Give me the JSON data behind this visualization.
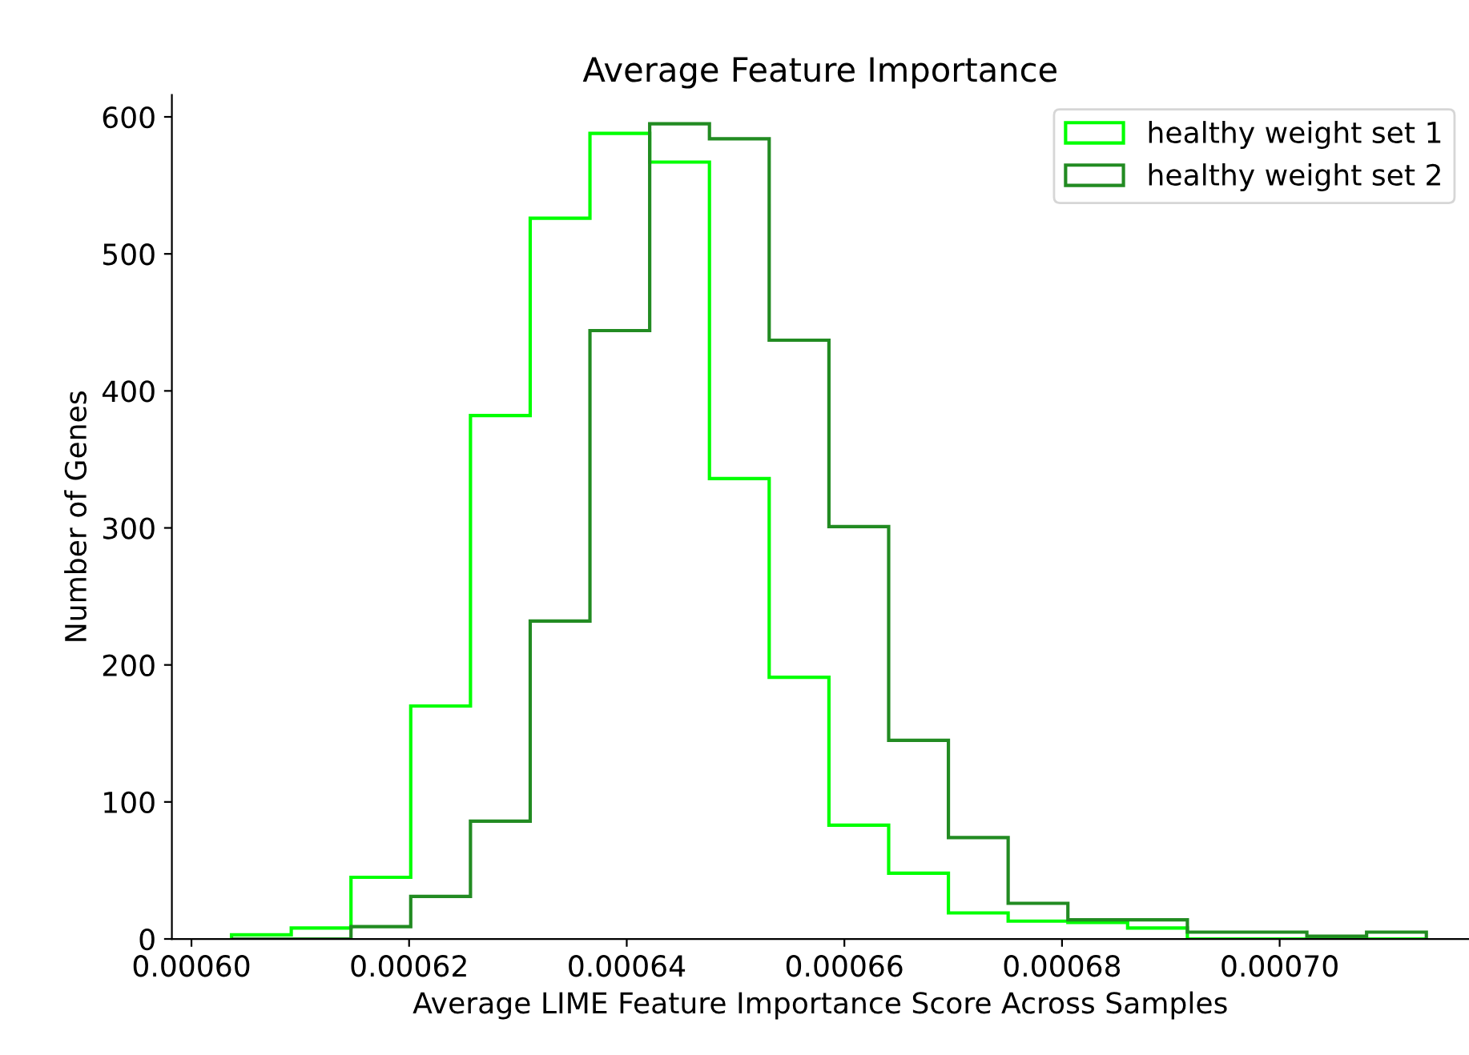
{
  "chart_data": {
    "type": "histogram",
    "title": "Average Feature Importance",
    "xlabel": "Average LIME Feature Importance Score Across Samples",
    "ylabel": "Number of Genes",
    "bins": [
      0.00060368,
      0.00060917,
      0.00061466,
      0.00062015,
      0.00062564,
      0.00063113,
      0.00063662,
      0.00064211,
      0.0006476,
      0.00065309,
      0.00065858,
      0.00066407,
      0.00066956,
      0.00067505,
      0.00068054,
      0.00068603,
      0.00069152,
      0.00069701,
      0.0007025,
      0.00070799,
      0.00071348
    ],
    "series": [
      {
        "name": "healthy weight set 1",
        "color": "#00ff00",
        "values": [
          3,
          8,
          45,
          170,
          382,
          526,
          588,
          567,
          336,
          191,
          83,
          48,
          19,
          13,
          12,
          8,
          0,
          0,
          0,
          0
        ]
      },
      {
        "name": "healthy weight set 2",
        "color": "#228b22",
        "values": [
          0,
          0,
          9,
          31,
          86,
          232,
          444,
          595,
          584,
          437,
          301,
          145,
          74,
          26,
          14,
          14,
          5,
          5,
          2,
          5
        ]
      }
    ],
    "xlim": [
      0.0005982,
      0.0007174
    ],
    "xticks": [
      {
        "value": 0.0006,
        "label": "0.00060"
      },
      {
        "value": 0.00062,
        "label": "0.00062"
      },
      {
        "value": 0.00064,
        "label": "0.00064"
      },
      {
        "value": 0.00066,
        "label": "0.00066"
      },
      {
        "value": 0.00068,
        "label": "0.00068"
      },
      {
        "value": 0.0007,
        "label": "0.00070"
      }
    ],
    "ylim": [
      0,
      616
    ],
    "yticks": [
      0,
      100,
      200,
      300,
      400,
      500,
      600
    ],
    "legend": "top right",
    "grid": false
  }
}
